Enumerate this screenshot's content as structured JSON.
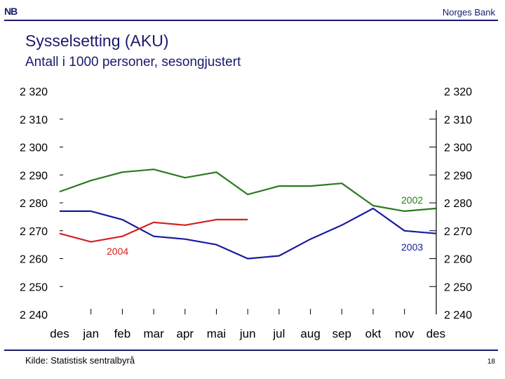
{
  "header": {
    "logo_text": "NB",
    "brand": "Norges Bank",
    "title": "Sysselsetting (AKU)",
    "subtitle": "Antall i 1000 personer, sesongjustert"
  },
  "footer": {
    "source": "Kilde: Statistisk sentralbyrå",
    "page_number": "18"
  },
  "colors": {
    "brand_blue": "#1a1a6e",
    "series_2002": "#2a7a1e",
    "series_2003": "#1a1aa0",
    "series_2004": "#d42020"
  },
  "chart_data": {
    "type": "line",
    "title": "Sysselsetting (AKU)",
    "subtitle": "Antall i 1000 personer, sesongjustert",
    "categories": [
      "des",
      "jan",
      "feb",
      "mar",
      "apr",
      "mai",
      "jun",
      "jul",
      "aug",
      "sep",
      "okt",
      "nov",
      "des"
    ],
    "ylim": [
      2240,
      2320
    ],
    "yticks": [
      "2 240",
      "2 250",
      "2 260",
      "2 270",
      "2 280",
      "2 290",
      "2 300",
      "2 310",
      "2 320"
    ],
    "grid": false,
    "series": [
      {
        "name": "2002",
        "color": "#2a7a1e",
        "values": [
          2284,
          2288,
          2291,
          2292,
          2289,
          2291,
          2283,
          2286,
          2286,
          2287,
          2279,
          2277,
          2278
        ]
      },
      {
        "name": "2003",
        "color": "#1a1aa0",
        "values": [
          2277,
          2277,
          2274,
          2268,
          2267,
          2265,
          2260,
          2261,
          2267,
          2272,
          2278,
          2270,
          2269
        ]
      },
      {
        "name": "2004",
        "color": "#d42020",
        "values": [
          2269,
          2266,
          2268,
          2273,
          2272,
          2274,
          2274,
          null,
          null,
          null,
          null,
          null,
          null
        ]
      }
    ]
  }
}
